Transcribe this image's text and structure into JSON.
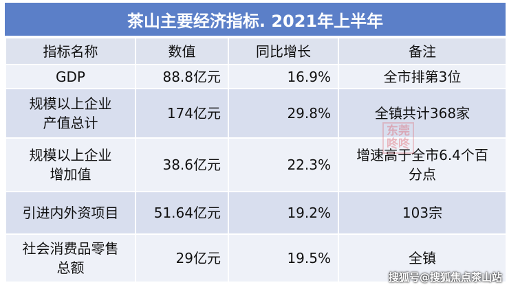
{
  "title": "茶山主要经济指标. 2021年上半年",
  "table": {
    "header": [
      "指标名称",
      "数值",
      "同比增长",
      "备注"
    ],
    "rows": [
      [
        [
          "GDP"
        ],
        [
          "88.8亿元"
        ],
        [
          "16.9%"
        ],
        [
          "全市排第3位"
        ]
      ],
      [
        [
          "规模以上企业",
          "产值总计"
        ],
        [
          "174亿元"
        ],
        [
          "29.8%"
        ],
        [
          "全镇共计368家"
        ]
      ],
      [
        [
          "规模以上企业",
          "增加值"
        ],
        [
          "38.6亿元"
        ],
        [
          "22.3%"
        ],
        [
          "增速高于全市6.4个百",
          "分点"
        ]
      ],
      [
        [
          "引进内外资项目"
        ],
        [
          "51.64亿元"
        ],
        [
          "19.2%"
        ],
        [
          "103宗"
        ]
      ],
      [
        [
          "社会消费品零售",
          "总额"
        ],
        [
          "29亿元"
        ],
        [
          "19.5%"
        ],
        [
          "全镇"
        ]
      ]
    ]
  },
  "stamp": [
    "东莞",
    "咚咚"
  ],
  "watermark": "搜狐号@搜狐焦点茶山站"
}
